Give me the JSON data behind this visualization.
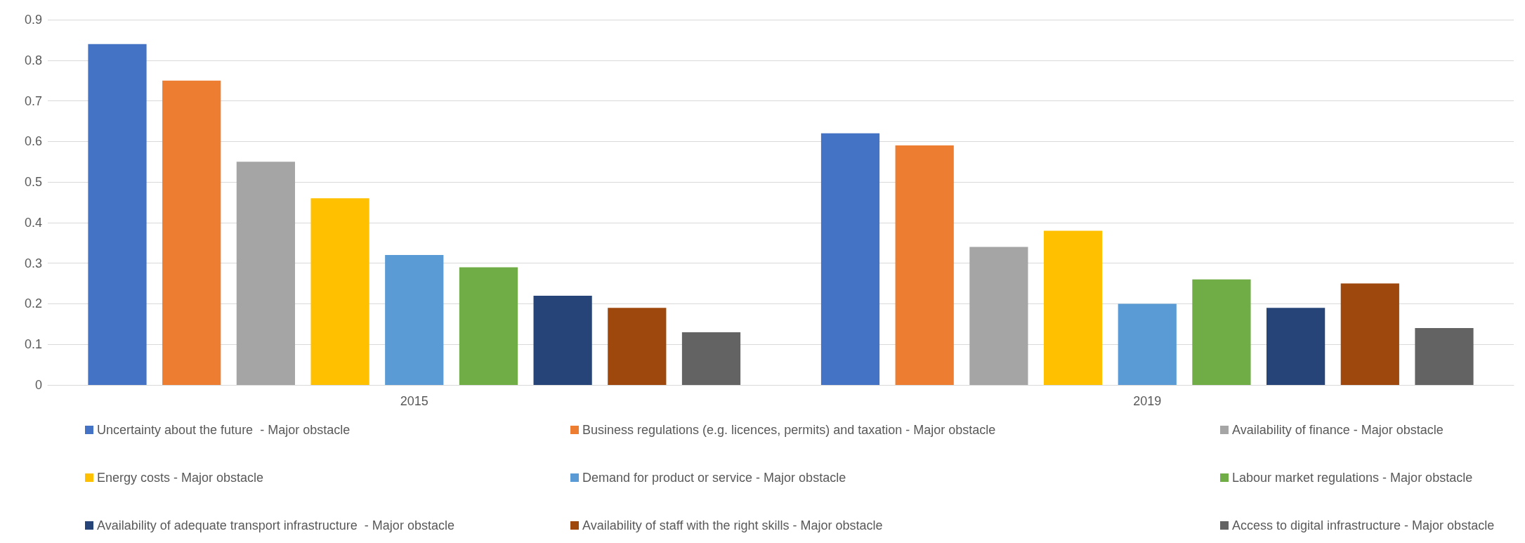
{
  "chart_data": {
    "type": "bar",
    "categories": [
      "2015",
      "2019"
    ],
    "series": [
      {
        "name": "Uncertainty about the future  - Major obstacle",
        "color": "#4472c4",
        "values": [
          0.84,
          0.62
        ]
      },
      {
        "name": "Business regulations (e.g. licences, permits) and taxation - Major obstacle",
        "color": "#ed7d31",
        "values": [
          0.75,
          0.59
        ]
      },
      {
        "name": "Availability of finance - Major obstacle",
        "color": "#a5a5a5",
        "values": [
          0.55,
          0.34
        ]
      },
      {
        "name": "Energy costs - Major obstacle",
        "color": "#ffc000",
        "values": [
          0.46,
          0.38
        ]
      },
      {
        "name": "Demand for product or service - Major obstacle",
        "color": "#5b9bd5",
        "values": [
          0.32,
          0.2
        ]
      },
      {
        "name": "Labour market regulations - Major obstacle",
        "color": "#70ad47",
        "values": [
          0.29,
          0.26
        ]
      },
      {
        "name": "Availability of adequate transport infrastructure  - Major obstacle",
        "color": "#264478",
        "values": [
          0.22,
          0.19
        ]
      },
      {
        "name": "Availability of staff with the right skills - Major obstacle",
        "color": "#9e480e",
        "values": [
          0.19,
          0.25
        ]
      },
      {
        "name": "Access to digital infrastructure - Major obstacle",
        "color": "#636363",
        "values": [
          0.13,
          0.14
        ]
      }
    ],
    "ylim": [
      0,
      0.9
    ],
    "yticks": [
      0,
      0.1,
      0.2,
      0.3,
      0.4,
      0.5,
      0.6,
      0.7,
      0.8,
      0.9
    ],
    "grid": "y",
    "legend": "bottom"
  }
}
